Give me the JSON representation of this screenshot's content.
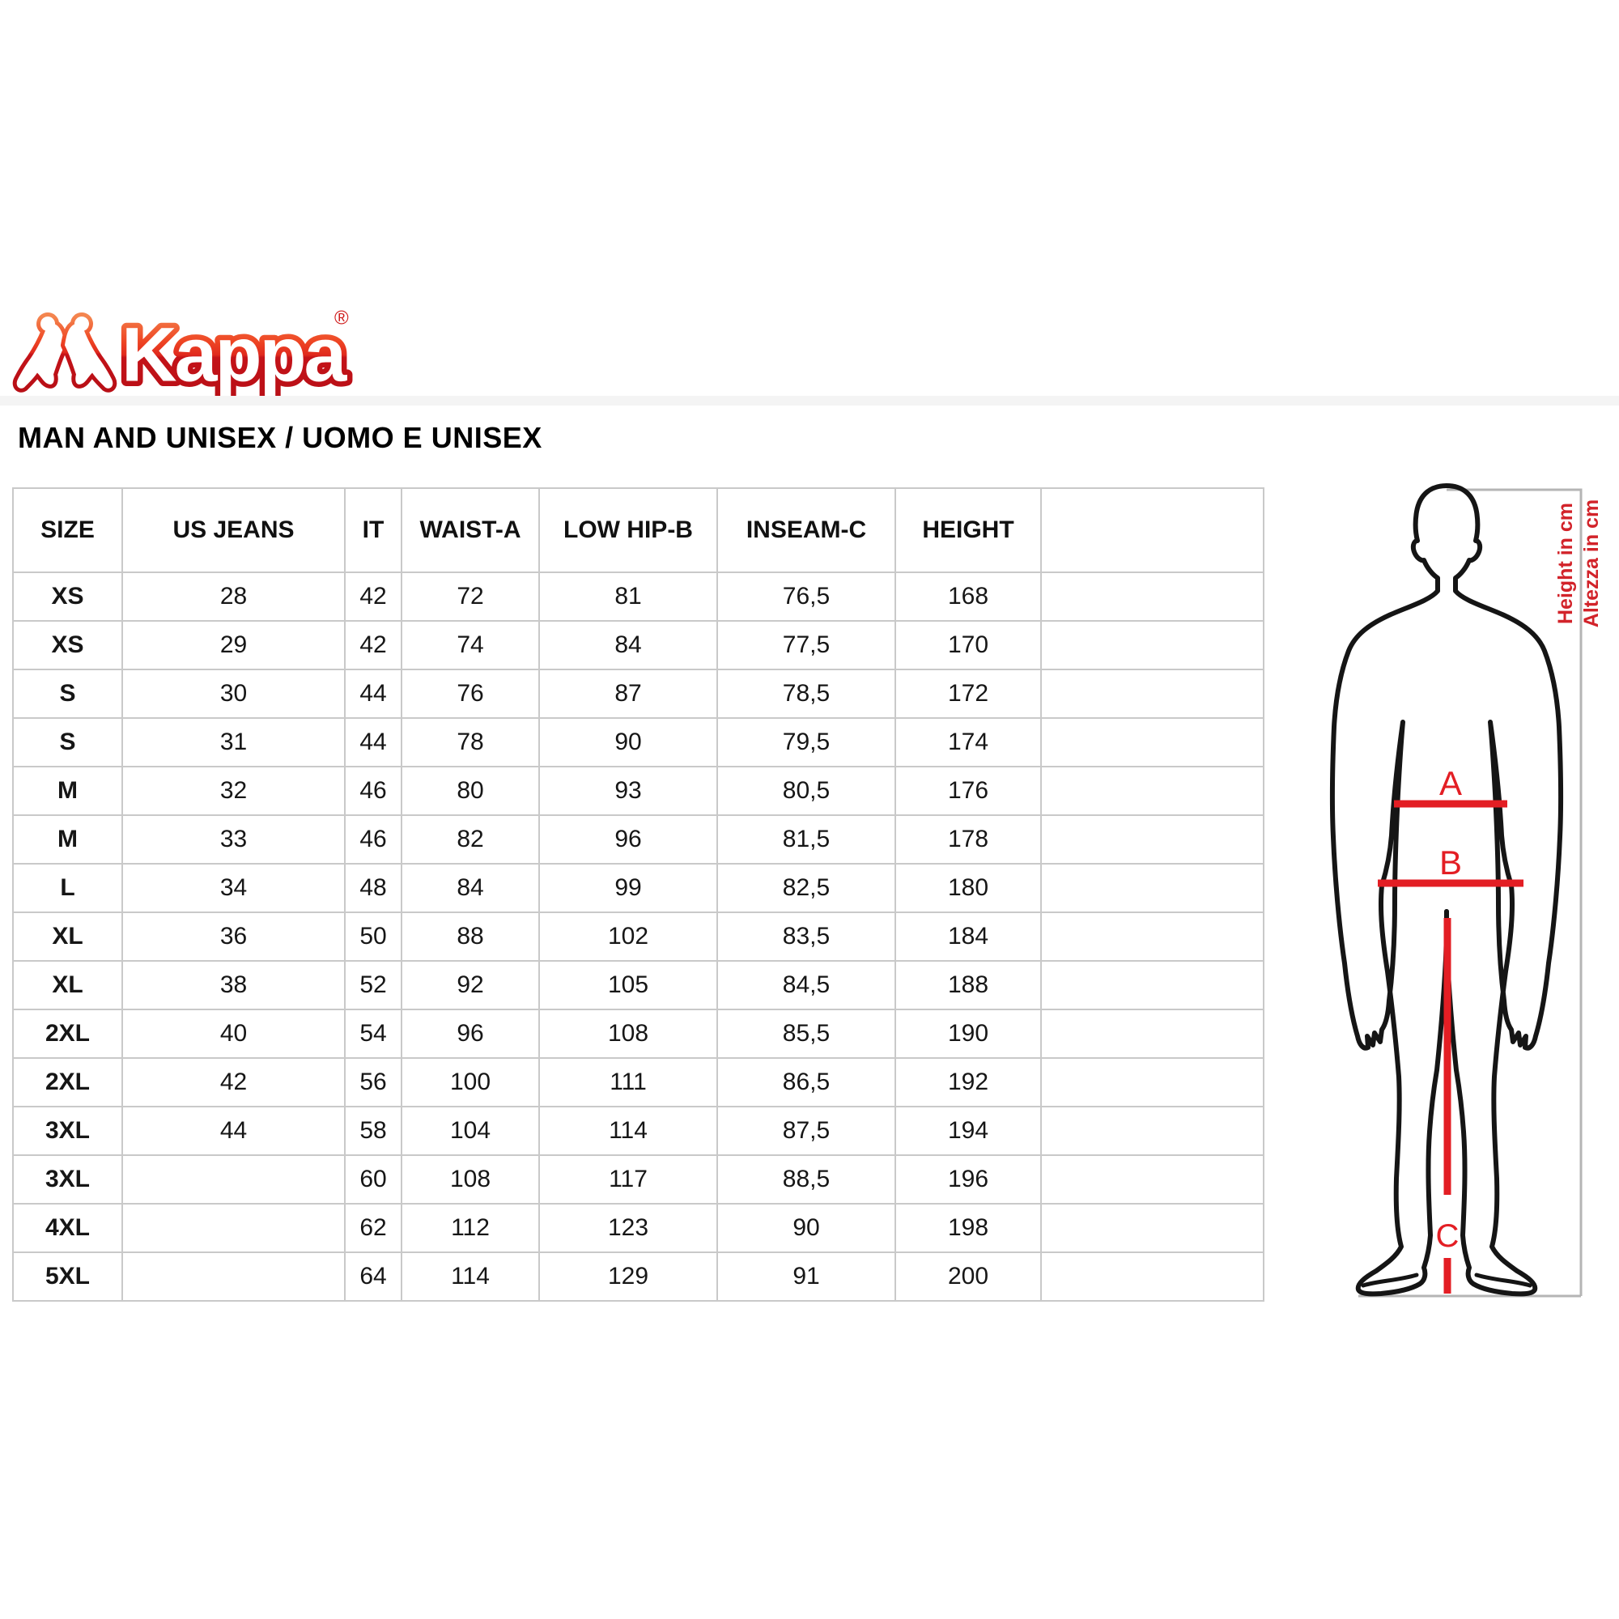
{
  "brand": {
    "logo_text": "Kappa",
    "registered_mark": "®"
  },
  "heading": "MAN AND UNISEX / UOMO E UNISEX",
  "table": {
    "columns": [
      "SIZE",
      "US JEANS",
      "IT",
      "WAIST-A",
      "LOW HIP-B",
      "INSEAM-C",
      "HEIGHT"
    ],
    "rows": [
      [
        "XS",
        "28",
        "42",
        "72",
        "81",
        "76,5",
        "168"
      ],
      [
        "XS",
        "29",
        "42",
        "74",
        "84",
        "77,5",
        "170"
      ],
      [
        "S",
        "30",
        "44",
        "76",
        "87",
        "78,5",
        "172"
      ],
      [
        "S",
        "31",
        "44",
        "78",
        "90",
        "79,5",
        "174"
      ],
      [
        "M",
        "32",
        "46",
        "80",
        "93",
        "80,5",
        "176"
      ],
      [
        "M",
        "33",
        "46",
        "82",
        "96",
        "81,5",
        "178"
      ],
      [
        "L",
        "34",
        "48",
        "84",
        "99",
        "82,5",
        "180"
      ],
      [
        "XL",
        "36",
        "50",
        "88",
        "102",
        "83,5",
        "184"
      ],
      [
        "XL",
        "38",
        "52",
        "92",
        "105",
        "84,5",
        "188"
      ],
      [
        "2XL",
        "40",
        "54",
        "96",
        "108",
        "85,5",
        "190"
      ],
      [
        "2XL",
        "42",
        "56",
        "100",
        "111",
        "86,5",
        "192"
      ],
      [
        "3XL",
        "44",
        "58",
        "104",
        "114",
        "87,5",
        "194"
      ],
      [
        "3XL",
        "",
        "60",
        "108",
        "117",
        "88,5",
        "196"
      ],
      [
        "4XL",
        "",
        "62",
        "112",
        "123",
        "90",
        "198"
      ],
      [
        "5XL",
        "",
        "64",
        "114",
        "129",
        "91",
        "200"
      ]
    ]
  },
  "figure": {
    "label_a": "A",
    "label_b": "B",
    "label_c": "C",
    "height_note_en": "Height in cm",
    "height_note_it": "Altezza in cm",
    "accent_red": "#d2232a",
    "line_red": "#e31e24",
    "bracket_gray": "#b5b5b5",
    "logo_red_dark": "#b80f16",
    "logo_red_light": "#ee4423"
  }
}
